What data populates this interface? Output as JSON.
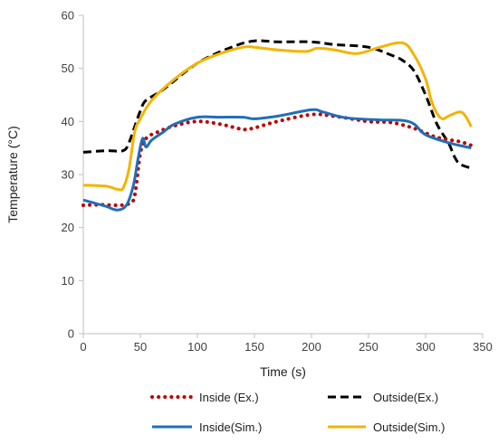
{
  "chart_data": {
    "type": "line",
    "xlabel": "Time (s)",
    "ylabel": "Temperature (°C)",
    "xlim": [
      0,
      350
    ],
    "ylim": [
      0,
      60
    ],
    "xticks": [
      0,
      50,
      100,
      150,
      200,
      250,
      300,
      350
    ],
    "yticks": [
      0,
      10,
      20,
      30,
      40,
      50,
      60
    ],
    "grid": false,
    "legend_position": "bottom",
    "series": [
      {
        "name": "Inside (Ex.)",
        "color": "#c00000",
        "style": "dotted",
        "x": [
          0,
          15,
          30,
          40,
          45,
          50,
          55,
          65,
          80,
          100,
          120,
          140,
          150,
          170,
          200,
          220,
          250,
          270,
          290,
          310,
          330,
          340
        ],
        "y": [
          24.2,
          24.3,
          24.2,
          24.5,
          26,
          34,
          36.8,
          38,
          39.2,
          40,
          39.5,
          38.5,
          38.8,
          40,
          41.3,
          41,
          40,
          39.8,
          38.7,
          37,
          36.2,
          35.5
        ]
      },
      {
        "name": "Outside(Ex.)",
        "color": "#000000",
        "style": "dashed",
        "x": [
          0,
          20,
          35,
          40,
          45,
          50,
          55,
          70,
          100,
          130,
          150,
          170,
          200,
          220,
          250,
          270,
          280,
          290,
          300,
          310,
          320,
          325,
          330,
          340
        ],
        "y": [
          34.2,
          34.5,
          34.5,
          36,
          39,
          42,
          44,
          46,
          51,
          54,
          55.2,
          55,
          55,
          54.5,
          54,
          52.5,
          51.5,
          49.5,
          45,
          39.5,
          36,
          33.5,
          32,
          31.2
        ]
      },
      {
        "name": "Inside(Sim.)",
        "color": "#1f6fba",
        "style": "solid",
        "x": [
          0,
          10,
          20,
          30,
          38,
          44,
          48,
          52,
          55,
          60,
          70,
          80,
          100,
          120,
          140,
          150,
          170,
          200,
          210,
          230,
          260,
          280,
          290,
          300,
          320,
          340
        ],
        "y": [
          25.2,
          24.6,
          24,
          23.3,
          24.3,
          28,
          33,
          36.8,
          35.2,
          36.5,
          38,
          39.5,
          40.8,
          40.8,
          40.8,
          40.5,
          41,
          42.2,
          41.8,
          40.7,
          40.3,
          40.2,
          39.5,
          37.5,
          36,
          35
        ]
      },
      {
        "name": "Outside(Sim.)",
        "color": "#f4b400",
        "style": "solid",
        "x": [
          0,
          20,
          30,
          35,
          40,
          45,
          50,
          60,
          80,
          100,
          120,
          140,
          150,
          170,
          195,
          205,
          220,
          240,
          260,
          280,
          290,
          300,
          305,
          310,
          315,
          320,
          330,
          335,
          340
        ],
        "y": [
          28,
          27.8,
          27.2,
          27.5,
          31,
          38,
          40.5,
          44,
          48,
          51,
          52.8,
          54,
          54,
          53.5,
          53.2,
          53.8,
          53.5,
          52.8,
          54,
          54.8,
          52.5,
          48,
          44,
          41.5,
          40.5,
          41,
          41.8,
          41,
          39
        ]
      }
    ]
  }
}
